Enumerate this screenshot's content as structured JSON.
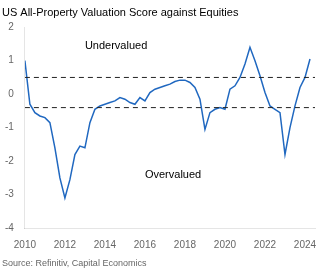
{
  "chart_data": {
    "type": "line",
    "title": "US All-Property Valuation Score against Equities",
    "source": "Source: Refinitiv, Capital Economics",
    "x": [
      2010.0,
      2010.25,
      2010.5,
      2010.75,
      2011.0,
      2011.25,
      2011.5,
      2011.75,
      2012.0,
      2012.25,
      2012.5,
      2012.75,
      2013.0,
      2013.25,
      2013.5,
      2013.75,
      2014.0,
      2014.25,
      2014.5,
      2014.75,
      2015.0,
      2015.25,
      2015.5,
      2015.75,
      2016.0,
      2016.25,
      2016.5,
      2016.75,
      2017.0,
      2017.25,
      2017.5,
      2017.75,
      2018.0,
      2018.25,
      2018.5,
      2018.75,
      2019.0,
      2019.25,
      2019.5,
      2019.75,
      2020.0,
      2020.25,
      2020.5,
      2020.75,
      2021.0,
      2021.25,
      2021.5,
      2021.75,
      2022.0,
      2022.25,
      2022.5,
      2022.75,
      2023.0,
      2023.25,
      2023.5,
      2023.75,
      2024.0,
      2024.25
    ],
    "values": [
      1.0,
      -0.3,
      -0.55,
      -0.65,
      -0.7,
      -0.85,
      -1.6,
      -2.5,
      -3.1,
      -2.55,
      -1.8,
      -1.55,
      -1.6,
      -0.85,
      -0.45,
      -0.35,
      -0.3,
      -0.25,
      -0.2,
      -0.1,
      -0.15,
      -0.25,
      -0.3,
      -0.1,
      -0.2,
      0.05,
      0.15,
      0.2,
      0.25,
      0.3,
      0.38,
      0.42,
      0.42,
      0.35,
      0.2,
      -0.15,
      -1.05,
      -0.55,
      -0.45,
      -0.4,
      -0.45,
      0.15,
      0.25,
      0.5,
      0.9,
      1.4,
      1.0,
      0.55,
      0.05,
      -0.35,
      -0.45,
      -0.55,
      -1.8,
      -1.0,
      -0.35,
      0.2,
      0.5,
      1.05
    ],
    "color": "#2068c0",
    "hlines": [
      {
        "value": 0.5,
        "color": "#222222",
        "line_style": "dashed"
      },
      {
        "value": -0.4,
        "color": "#222222",
        "line_style": "dashed"
      }
    ],
    "annotations": [
      {
        "text": "Undervalued",
        "x": 2013.0,
        "y": 1.35
      },
      {
        "text": "Overvalued",
        "x": 2016.0,
        "y": -2.5
      }
    ],
    "xlim": [
      2010,
      2024.5
    ],
    "xticks": [
      2010,
      2012,
      2014,
      2016,
      2018,
      2020,
      2022,
      2024
    ],
    "ylim": [
      -4,
      2
    ],
    "yticks": [
      -4,
      -3,
      -2,
      -1,
      0,
      1,
      2
    ],
    "grid": false
  }
}
